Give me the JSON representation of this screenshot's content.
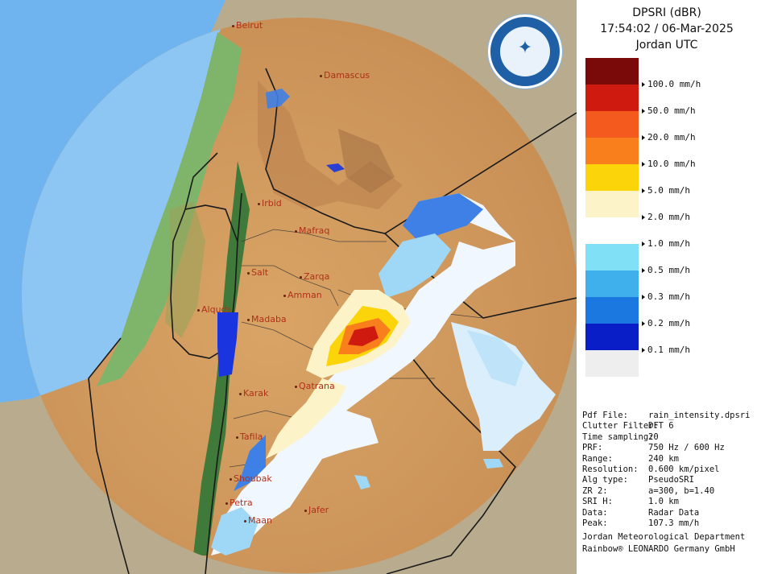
{
  "header": {
    "line1": "DPSRI (dBR)",
    "line2": "17:54:02 / 06-Mar-2025",
    "line3": "Jordan UTC"
  },
  "logo": {
    "name": "Jordan Meteorological Department",
    "icon": "compass-star-icon"
  },
  "legend": {
    "colors": [
      "#7a0a0a",
      "#cf1a10",
      "#f45a1e",
      "#f87f1c",
      "#fcd40a",
      "#fcf3c8",
      "#ffffff",
      "#7fe0f6",
      "#3fb0ec",
      "#1a78e0",
      "#0a1ec8",
      "#eeeeee"
    ],
    "labels": [
      "100.0 mm/h",
      "50.0 mm/h",
      "20.0 mm/h",
      "10.0 mm/h",
      "5.0 mm/h",
      "2.0 mm/h",
      "1.0 mm/h",
      "0.5 mm/h",
      "0.3 mm/h",
      "0.2 mm/h",
      "0.1 mm/h"
    ]
  },
  "info": [
    {
      "key": "Pdf File:",
      "value": "rain_intensity.dpsri"
    },
    {
      "key": "Clutter Filter:",
      "value": "DFT 6"
    },
    {
      "key": "Time sampling:",
      "value": "20"
    },
    {
      "key": "PRF:",
      "value": "750 Hz / 600 Hz"
    },
    {
      "key": "Range:",
      "value": "240 km"
    },
    {
      "key": "Resolution:",
      "value": "0.600 km/pixel"
    },
    {
      "key": "Alg type:",
      "value": "PseudoSRI"
    },
    {
      "key": "ZR 2:",
      "value": "a=300, b=1.40"
    },
    {
      "key": "SRI H:",
      "value": "1.0 km"
    },
    {
      "key": "Data:",
      "value": "Radar Data"
    },
    {
      "key": "Peak:",
      "value": "107.3 mm/h"
    }
  ],
  "footer": {
    "line1": "Jordan Meteorological Department",
    "line2": "Rainbow® LEONARDO Germany GmbH"
  },
  "cities": [
    "Beirut",
    "Damascus",
    "Irbid",
    "Mafraq",
    "Salt",
    "Zarqa",
    "Amman",
    "Alquds",
    "Madaba",
    "Karak",
    "Qatrana",
    "Tafila",
    "Shoubak",
    "Petra",
    "Jafer",
    "Maan"
  ]
}
